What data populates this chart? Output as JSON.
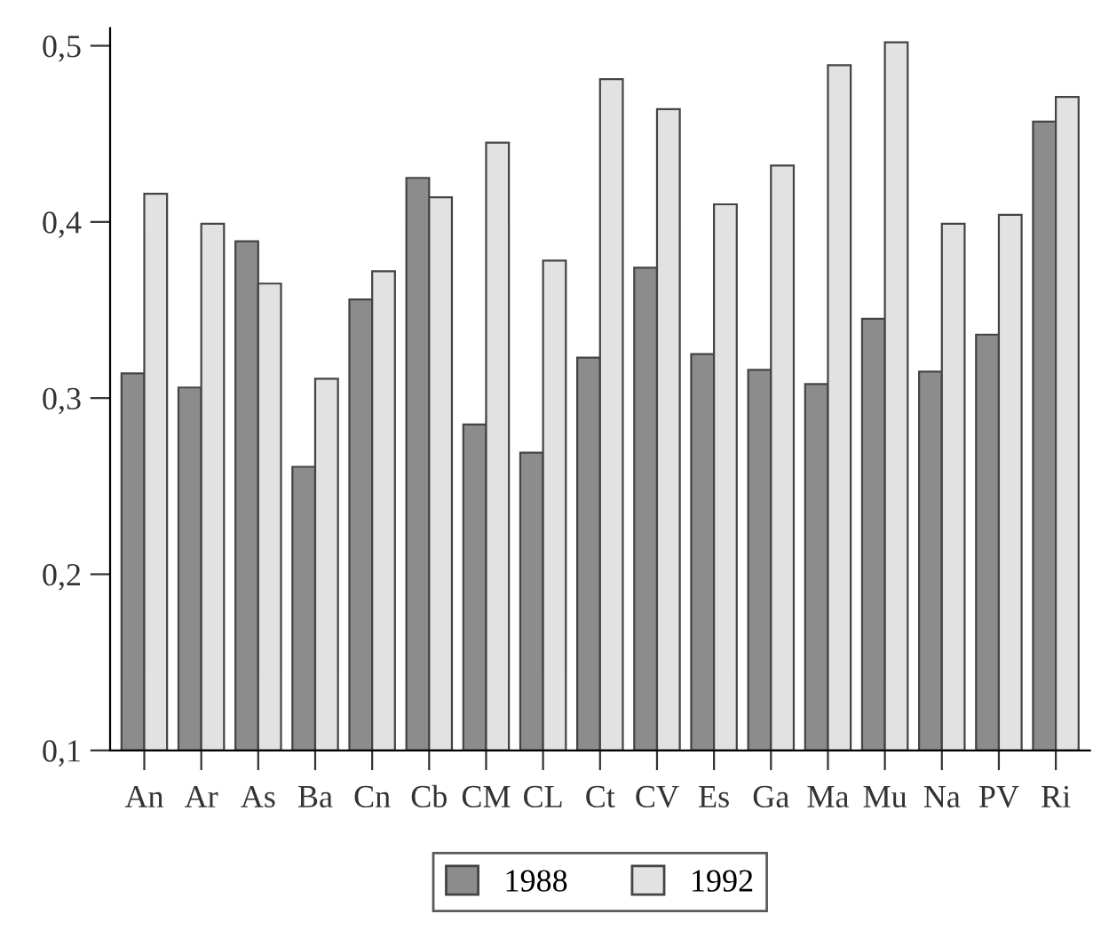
{
  "chart_data": {
    "type": "bar",
    "categories": [
      "An",
      "Ar",
      "As",
      "Ba",
      "Cn",
      "Cb",
      "CM",
      "CL",
      "Ct",
      "CV",
      "Es",
      "Ga",
      "Ma",
      "Mu",
      "Na",
      "PV",
      "Ri"
    ],
    "series": [
      {
        "name": "1988",
        "color": "#8c8c8c",
        "values": [
          0.314,
          0.306,
          0.389,
          0.261,
          0.356,
          0.425,
          0.285,
          0.269,
          0.323,
          0.374,
          0.325,
          0.316,
          0.308,
          0.345,
          0.315,
          0.336,
          0.457
        ]
      },
      {
        "name": "1992",
        "color": "#e2e2e2",
        "values": [
          0.416,
          0.399,
          0.365,
          0.311,
          0.372,
          0.414,
          0.445,
          0.378,
          0.481,
          0.464,
          0.41,
          0.432,
          0.489,
          0.502,
          0.399,
          0.404,
          0.471
        ]
      }
    ],
    "ylim": [
      0.1,
      0.51
    ],
    "yticks": [
      {
        "value": 0.1,
        "label": "0,1"
      },
      {
        "value": 0.2,
        "label": "0,2"
      },
      {
        "value": 0.3,
        "label": "0,3"
      },
      {
        "value": 0.4,
        "label": "0,4"
      },
      {
        "value": 0.5,
        "label": "0,5"
      }
    ],
    "grid": false,
    "legend": "bottom"
  }
}
